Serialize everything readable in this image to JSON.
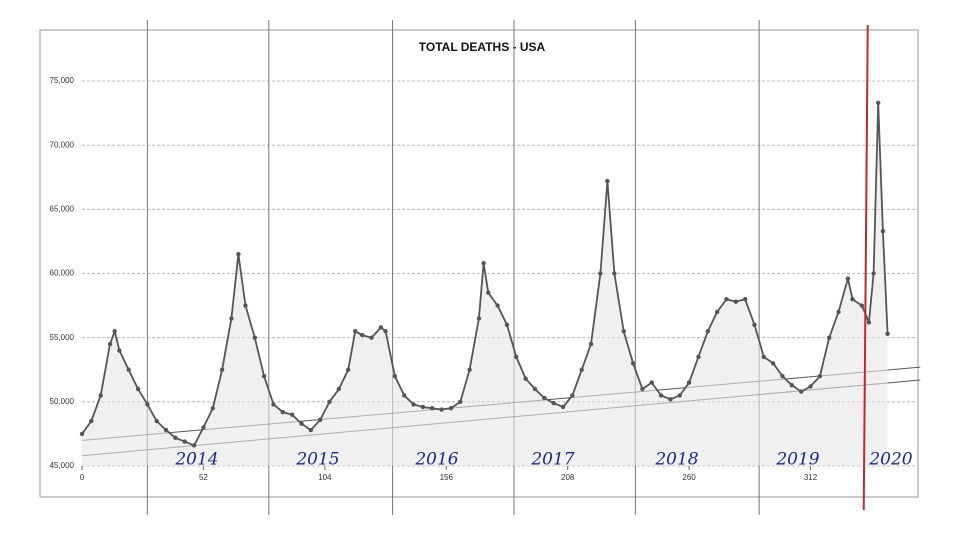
{
  "chart_data": {
    "type": "line",
    "title": "TOTAL DEATHS - USA",
    "series": [
      {
        "color": "#555555",
        "x": [
          0,
          4,
          8,
          12,
          14,
          16,
          20,
          24,
          28,
          32,
          36,
          40,
          44,
          48,
          52,
          56,
          60,
          64,
          67,
          70,
          74,
          78,
          82,
          86,
          90,
          94,
          98,
          102,
          106,
          110,
          114,
          117,
          120,
          124,
          128,
          130,
          134,
          138,
          142,
          146,
          150,
          154,
          158,
          162,
          166,
          170,
          172,
          174,
          178,
          182,
          186,
          190,
          194,
          198,
          202,
          206,
          210,
          214,
          218,
          222,
          225,
          228,
          232,
          236,
          240,
          244,
          248,
          252,
          256,
          260,
          264,
          268,
          272,
          276,
          280,
          284,
          288,
          292,
          296,
          300,
          304,
          308,
          312,
          316,
          320,
          324,
          328,
          330,
          334,
          337,
          339,
          341,
          343,
          345
        ],
        "values": [
          47500,
          48500,
          50500,
          54500,
          55500,
          54000,
          52500,
          51000,
          49800,
          48500,
          47800,
          47200,
          46900,
          46600,
          48000,
          49500,
          52500,
          56500,
          61500,
          57500,
          55000,
          52000,
          49800,
          49200,
          49000,
          48300,
          47800,
          48600,
          50000,
          51000,
          52500,
          55500,
          55200,
          55000,
          55800,
          55500,
          52000,
          50500,
          49800,
          49600,
          49500,
          49400,
          49500,
          50000,
          52500,
          56500,
          60800,
          58500,
          57500,
          56000,
          53500,
          51800,
          51000,
          50300,
          49900,
          49600,
          50500,
          52500,
          54500,
          60000,
          67200,
          60000,
          55500,
          53000,
          51000,
          51500,
          50500,
          50200,
          50500,
          51500,
          53500,
          55500,
          57000,
          58000,
          57800,
          58000,
          56000,
          53500,
          53000,
          52000,
          51300,
          50800,
          51200,
          52000,
          55000,
          57000,
          59600,
          58000,
          57500,
          56200,
          60000,
          73300,
          63300,
          55300
        ]
      }
    ],
    "xlim": [
      0,
      360
    ],
    "xticks": [
      0,
      52,
      104,
      156,
      208,
      260,
      312
    ],
    "ylim": [
      45000,
      75000
    ],
    "yticks": [
      {
        "value": 45000,
        "label": "45,000"
      },
      {
        "value": 50000,
        "label": "50,000"
      },
      {
        "value": 55000,
        "label": "55,000"
      },
      {
        "value": 60000,
        "label": "60,000"
      },
      {
        "value": 65000,
        "label": "65,000"
      },
      {
        "value": 70000,
        "label": "70,000"
      },
      {
        "value": 75000,
        "label": "75,000"
      }
    ],
    "grid": true,
    "year_lines": [
      28,
      80,
      133,
      185,
      237,
      290
    ],
    "reference_lines": [
      {
        "x": [
          0,
          359
        ],
        "y": [
          45800,
          51700
        ]
      },
      {
        "x": [
          0,
          359
        ],
        "y": [
          47000,
          52700
        ]
      }
    ],
    "marker_line": {
      "x": 336.5,
      "color": "#c0282d"
    },
    "annotations": [
      "2014",
      "2015",
      "2016",
      "2017",
      "2018",
      "2019",
      "2020"
    ]
  }
}
